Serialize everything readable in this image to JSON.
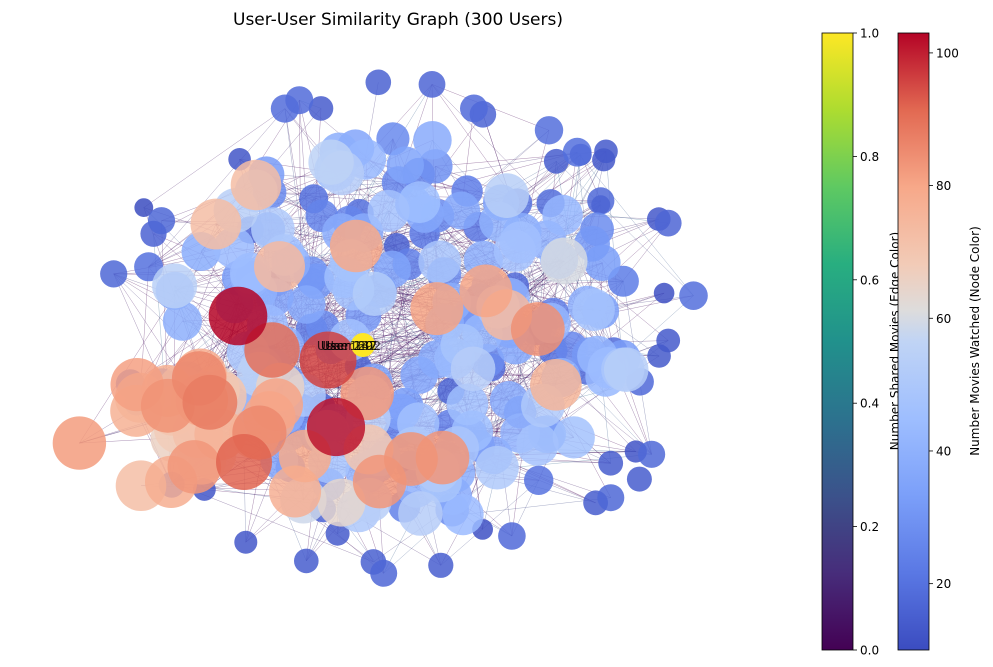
{
  "chart_data": {
    "type": "network",
    "title": "User-User Similarity Graph (300 Users)",
    "node_count": 300,
    "highlighted_labels": [
      "User 237",
      "User 69",
      "User 1202",
      "User 142"
    ],
    "edge_colorbar": {
      "label": "Number Shared Movies (Edge Color)",
      "colormap": "viridis",
      "range": [
        0.0,
        1.0
      ],
      "ticks": [
        0.0,
        0.2,
        0.4,
        0.6,
        0.8,
        1.0
      ],
      "tick_labels": [
        "0.0",
        "0.2",
        "0.4",
        "0.6",
        "0.8",
        "1.0"
      ]
    },
    "node_colorbar": {
      "label": "Number Movies Watched (Node Color)",
      "colormap": "coolwarm",
      "range": [
        10,
        103
      ],
      "ticks": [
        20,
        40,
        60,
        80,
        100
      ],
      "tick_labels": [
        "20",
        "40",
        "60",
        "80",
        "100"
      ]
    },
    "grid": false,
    "axes_visible": false
  }
}
